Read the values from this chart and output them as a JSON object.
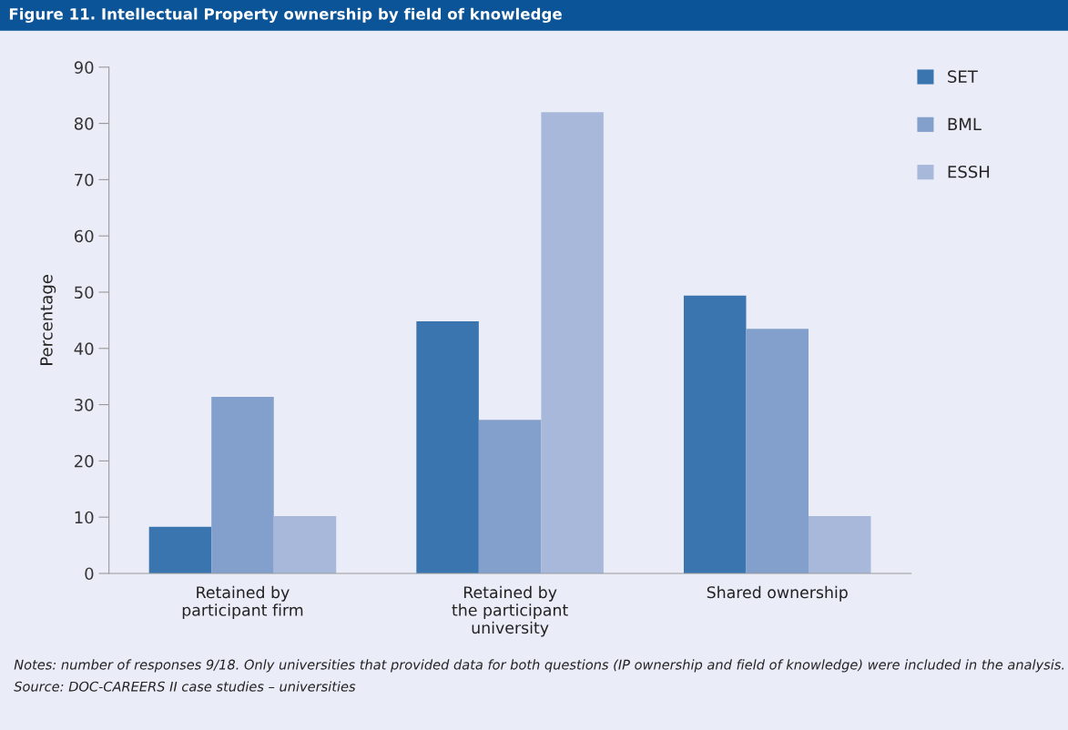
{
  "chart_data": {
    "type": "bar",
    "title": "Figure 11. Intellectual Property ownership by field of knowledge",
    "ylabel": "Percentage",
    "categories": [
      "Retained by\nparticipant firm",
      "Retained by\nthe participant\nuniversity",
      "Shared ownership"
    ],
    "series": [
      {
        "name": "SET",
        "color": "#3b75b0",
        "values": [
          8.3,
          44.8,
          49.4
        ]
      },
      {
        "name": "BML",
        "color": "#839fcb",
        "values": [
          31.4,
          27.3,
          43.5
        ]
      },
      {
        "name": "ESSH",
        "color": "#a8b8db",
        "values": [
          10.2,
          82.0,
          10.2
        ]
      }
    ],
    "ylim": [
      0,
      90
    ],
    "yticks": [
      0,
      10,
      20,
      30,
      40,
      50,
      60,
      70,
      80,
      90
    ],
    "grid": false,
    "legend": "top right",
    "annotations": [
      "Notes: number of responses 9/18. Only universities that provided data for both questions (IP ownership and field of knowledge) were included in the analysis.",
      "Source: DOC-CAREERS II case studies – universities"
    ]
  }
}
